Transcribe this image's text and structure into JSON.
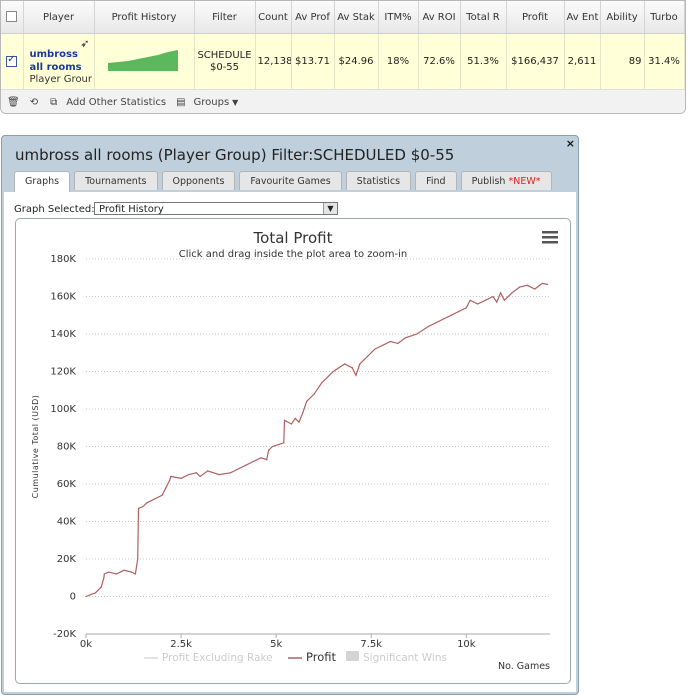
{
  "table": {
    "headers": [
      "Player",
      "Profit History",
      "Filter",
      "Count",
      "Av Prof",
      "Av Stak",
      "ITM%",
      "Av ROI",
      "Total R",
      "Profit",
      "Av Ent",
      "Ability",
      "Turbo"
    ],
    "row": {
      "player_name_1": "umbross",
      "player_name_2": "all rooms",
      "player_group": "Player Grour",
      "filter_1": "SCHEDULE",
      "filter_2": "$0-55",
      "count": "12,138",
      "av_prof": "$13.71",
      "av_stake": "$24.96",
      "itm": "18%",
      "av_roi": "72.6%",
      "total_r": "51.3%",
      "profit": "$166,437",
      "av_ent": "2,611",
      "ability": "89",
      "turbo": "31.4%",
      "remove": "x"
    },
    "toolbar": {
      "add_stats": "Add Other Statistics",
      "groups": "Groups"
    }
  },
  "dialog": {
    "title": "umbross all rooms (Player Group) Filter:SCHEDULED $0-55",
    "close": "×",
    "tabs": [
      "Graphs",
      "Tournaments",
      "Opponents",
      "Favourite Games",
      "Statistics",
      "Find",
      "Publish"
    ],
    "new_tag": "*NEW*",
    "graph_selected_label": "Graph Selected:",
    "graph_selected_value": "Profit History"
  },
  "chart_data": {
    "type": "line",
    "title": "Total Profit",
    "subtitle": "Click and drag inside the plot area to zoom-in",
    "ylabel": "Cumulative Total (USD)",
    "xlabel": "No. Games",
    "ylim": [
      -20000,
      180000
    ],
    "xlim": [
      0,
      12200
    ],
    "y_ticks": [
      -20000,
      0,
      20000,
      40000,
      60000,
      80000,
      100000,
      120000,
      140000,
      160000,
      180000
    ],
    "y_tick_labels": [
      "-20K",
      "0",
      "20K",
      "40K",
      "60K",
      "80K",
      "100K",
      "120K",
      "140K",
      "160K",
      "180K"
    ],
    "x_ticks": [
      0,
      2500,
      5000,
      7500,
      10000
    ],
    "x_tick_labels": [
      "0k",
      "2.5k",
      "5k",
      "7.5k",
      "10k"
    ],
    "legend": [
      "Profit Excluding Rake",
      "Profit",
      "Significant Wins"
    ],
    "colors": {
      "profit": "#b06060",
      "excl_rake": "#d8d8d8",
      "sig": "#d4d4d4"
    },
    "series": [
      {
        "name": "Profit",
        "x": [
          0,
          250,
          400,
          470,
          480,
          600,
          800,
          1000,
          1200,
          1300,
          1360,
          1380,
          1500,
          1600,
          1800,
          2000,
          2100,
          2200,
          2230,
          2500,
          2700,
          2900,
          3000,
          3200,
          3500,
          3800,
          4000,
          4200,
          4400,
          4600,
          4750,
          4800,
          4900,
          5200,
          5220,
          5400,
          5500,
          5600,
          5700,
          5800,
          6000,
          6200,
          6400,
          6500,
          6800,
          7000,
          7100,
          7200,
          7400,
          7600,
          7800,
          8000,
          8200,
          8400,
          8700,
          9000,
          9200,
          9400,
          9600,
          9800,
          10000,
          10100,
          10300,
          10500,
          10700,
          10800,
          10900,
          11000,
          11200,
          11400,
          11600,
          11800,
          12000,
          12138
        ],
        "y": [
          0,
          2000,
          5000,
          10000,
          12000,
          13000,
          12000,
          14000,
          13000,
          12000,
          20000,
          47000,
          48000,
          50000,
          52000,
          54000,
          58000,
          62000,
          64000,
          63000,
          65000,
          66000,
          64000,
          67000,
          65000,
          66000,
          68000,
          70000,
          72000,
          74000,
          73000,
          78000,
          80000,
          82000,
          94000,
          92000,
          95000,
          93000,
          98000,
          104000,
          108000,
          114000,
          118000,
          120000,
          124000,
          122000,
          118000,
          124000,
          128000,
          132000,
          134000,
          136000,
          135000,
          138000,
          140000,
          144000,
          146000,
          148000,
          150000,
          152000,
          154000,
          158000,
          156000,
          158000,
          160000,
          157000,
          162000,
          158000,
          162000,
          165000,
          166000,
          164000,
          167000,
          166437
        ]
      }
    ]
  }
}
